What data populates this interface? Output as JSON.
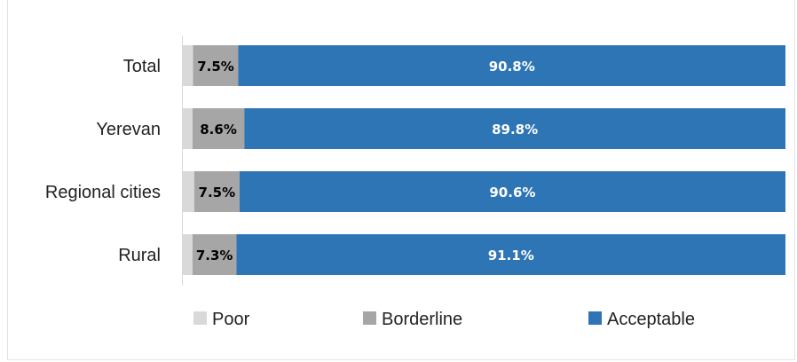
{
  "chart_data": {
    "type": "bar",
    "orientation": "horizontal",
    "stacked": true,
    "categories": [
      "Total",
      "Yerevan",
      "Regional cities",
      "Rural"
    ],
    "series": [
      {
        "name": "Poor",
        "values": [
          1.7,
          1.6,
          1.9,
          1.6
        ],
        "color": "#d9d9d9",
        "label_color": "#000000",
        "show_labels": false
      },
      {
        "name": "Borderline",
        "values": [
          7.5,
          8.6,
          7.5,
          7.3
        ],
        "color": "#a6a6a6",
        "label_color": "#000000",
        "show_labels": true
      },
      {
        "name": "Acceptable",
        "values": [
          90.8,
          89.8,
          90.6,
          91.1
        ],
        "color": "#2e75b6",
        "label_color": "#ffffff",
        "show_labels": true
      }
    ],
    "data_labels": [
      [
        "",
        "7.5%",
        "90.8%"
      ],
      [
        "",
        "8.6%",
        "89.8%"
      ],
      [
        "",
        "7.5%",
        "90.6%"
      ],
      [
        "",
        "7.3%",
        "91.1%"
      ]
    ],
    "xlim": [
      0,
      100
    ],
    "title": "",
    "xlabel": "",
    "ylabel": "",
    "grid": false,
    "legend_position": "bottom"
  }
}
